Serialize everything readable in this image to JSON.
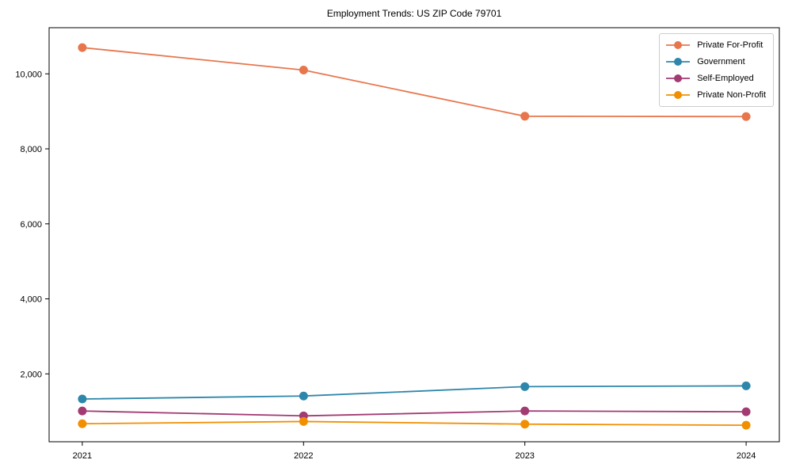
{
  "chart_data": {
    "type": "line",
    "title": "Employment Trends: US ZIP Code 79701",
    "categories": [
      "2021",
      "2022",
      "2023",
      "2024"
    ],
    "x_values": [
      2021,
      2022,
      2023,
      2024
    ],
    "series": [
      {
        "name": "Private For-Profit",
        "color": "#e8764d",
        "values": [
          10700,
          10100,
          8870,
          8860
        ]
      },
      {
        "name": "Government",
        "color": "#2e86ab",
        "values": [
          1330,
          1410,
          1660,
          1680
        ]
      },
      {
        "name": "Self-Employed",
        "color": "#a23b72",
        "values": [
          1010,
          880,
          1010,
          990
        ]
      },
      {
        "name": "Private Non-Profit",
        "color": "#f18f01",
        "values": [
          670,
          730,
          660,
          630
        ]
      }
    ],
    "xlabel": "",
    "ylabel": "",
    "xlim": [
      2020.85,
      2024.15
    ],
    "ylim": [
      190,
      11230
    ],
    "yticks": [
      2000,
      4000,
      6000,
      8000,
      10000
    ],
    "ytick_labels": [
      "2,000",
      "4,000",
      "6,000",
      "8,000",
      "10,000"
    ],
    "grid": false,
    "legend_position": "upper right",
    "marker": "circle",
    "line_width": 1.8,
    "marker_radius": 5.5,
    "axis_color": "#000000",
    "background": "#ffffff"
  }
}
